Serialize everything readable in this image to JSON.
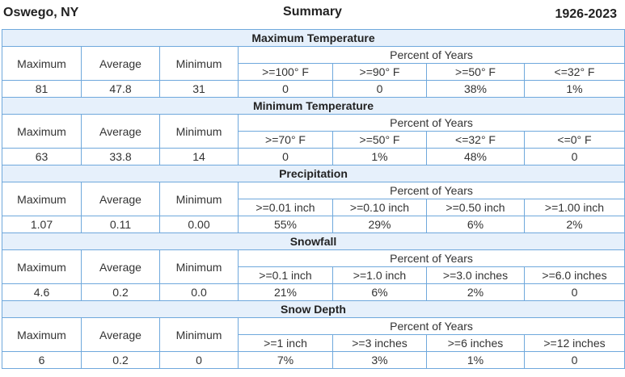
{
  "header": {
    "location": "Oswego, NY",
    "summary": "Summary",
    "years": "1926-2023"
  },
  "labels": {
    "maximum": "Maximum",
    "average": "Average",
    "minimum": "Minimum",
    "percent_of_years": "Percent of Years"
  },
  "sections": [
    {
      "title": "Maximum Temperature",
      "thresholds": [
        ">=100° F",
        ">=90° F",
        ">=50° F",
        "<=32° F"
      ],
      "max": "81",
      "avg": "47.8",
      "min": "31",
      "pcts": [
        "0",
        "0",
        "38%",
        "1%"
      ]
    },
    {
      "title": "Minimum Temperature",
      "thresholds": [
        ">=70° F",
        ">=50° F",
        "<=32° F",
        "<=0° F"
      ],
      "max": "63",
      "avg": "33.8",
      "min": "14",
      "pcts": [
        "0",
        "1%",
        "48%",
        "0"
      ]
    },
    {
      "title": "Precipitation",
      "thresholds": [
        ">=0.01 inch",
        ">=0.10 inch",
        ">=0.50 inch",
        ">=1.00 inch"
      ],
      "max": "1.07",
      "avg": "0.11",
      "min": "0.00",
      "pcts": [
        "55%",
        "29%",
        "6%",
        "2%"
      ]
    },
    {
      "title": "Snowfall",
      "thresholds": [
        ">=0.1 inch",
        ">=1.0 inch",
        ">=3.0 inches",
        ">=6.0 inches"
      ],
      "max": "4.6",
      "avg": "0.2",
      "min": "0.0",
      "pcts": [
        "21%",
        "6%",
        "2%",
        "0"
      ]
    },
    {
      "title": "Snow Depth",
      "thresholds": [
        ">=1 inch",
        ">=3 inches",
        ">=6 inches",
        ">=12 inches"
      ],
      "max": "6",
      "avg": "0.2",
      "min": "0",
      "pcts": [
        "7%",
        "3%",
        "1%",
        "0"
      ]
    }
  ]
}
